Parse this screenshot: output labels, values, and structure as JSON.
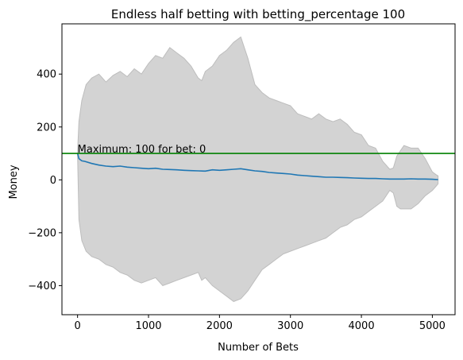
{
  "chart_data": {
    "type": "area",
    "title": "Endless half betting with betting_percentage 100",
    "xlabel": "Number of Bets",
    "ylabel": "Money",
    "xlim": [
      -220,
      5320
    ],
    "ylim": [
      -510,
      590
    ],
    "xticks": [
      0,
      1000,
      2000,
      3000,
      4000,
      5000
    ],
    "xtick_labels": [
      "0",
      "1000",
      "2000",
      "3000",
      "4000",
      "5000"
    ],
    "yticks": [
      -400,
      -200,
      0,
      200,
      400
    ],
    "ytick_labels": [
      "−400",
      "−200",
      "0",
      "200",
      "400"
    ],
    "grid": false,
    "band": {
      "color": "#d3d3d3",
      "edge_color": "#bdbdbd",
      "x": [
        0,
        20,
        60,
        120,
        200,
        300,
        400,
        500,
        600,
        700,
        800,
        900,
        1000,
        1100,
        1200,
        1300,
        1400,
        1500,
        1600,
        1700,
        1750,
        1800,
        1900,
        2000,
        2100,
        2200,
        2300,
        2400,
        2500,
        2600,
        2700,
        2800,
        2900,
        3000,
        3100,
        3200,
        3300,
        3400,
        3500,
        3600,
        3700,
        3800,
        3900,
        4000,
        4100,
        4200,
        4300,
        4400,
        4450,
        4500,
        4550,
        4600,
        4700,
        4800,
        4900,
        5000,
        5050,
        5080
      ],
      "upper": [
        110,
        220,
        300,
        360,
        385,
        400,
        370,
        395,
        410,
        390,
        420,
        400,
        440,
        470,
        460,
        500,
        480,
        460,
        430,
        385,
        375,
        410,
        430,
        470,
        490,
        520,
        540,
        460,
        360,
        330,
        310,
        300,
        290,
        280,
        250,
        240,
        230,
        250,
        230,
        220,
        230,
        210,
        180,
        170,
        130,
        120,
        70,
        40,
        45,
        90,
        110,
        130,
        120,
        120,
        80,
        30,
        20,
        15
      ],
      "lower": [
        90,
        -150,
        -230,
        -270,
        -290,
        -300,
        -320,
        -330,
        -350,
        -360,
        -380,
        -390,
        -380,
        -370,
        -400,
        -390,
        -380,
        -370,
        -360,
        -350,
        -380,
        -370,
        -400,
        -420,
        -440,
        -460,
        -450,
        -420,
        -380,
        -340,
        -320,
        -300,
        -280,
        -270,
        -260,
        -250,
        -240,
        -230,
        -220,
        -200,
        -180,
        -170,
        -150,
        -140,
        -120,
        -100,
        -80,
        -40,
        -50,
        -100,
        -110,
        -110,
        -110,
        -90,
        -60,
        -40,
        -25,
        -15
      ]
    },
    "series": [
      {
        "color": "#1f77b4",
        "x": [
          0,
          20,
          60,
          100,
          200,
          300,
          400,
          500,
          600,
          700,
          800,
          900,
          1000,
          1100,
          1200,
          1300,
          1400,
          1500,
          1600,
          1700,
          1800,
          1900,
          2000,
          2100,
          2200,
          2300,
          2400,
          2500,
          2600,
          2700,
          2800,
          2900,
          3000,
          3100,
          3200,
          3300,
          3400,
          3500,
          3600,
          3700,
          3800,
          3900,
          4000,
          4100,
          4200,
          4300,
          4400,
          4500,
          4600,
          4700,
          4800,
          4900,
          5000,
          5080
        ],
        "y": [
          100,
          80,
          72,
          70,
          62,
          56,
          52,
          50,
          52,
          48,
          46,
          44,
          42,
          44,
          40,
          39,
          38,
          36,
          35,
          34,
          33,
          38,
          36,
          38,
          40,
          42,
          38,
          34,
          32,
          28,
          26,
          24,
          22,
          18,
          16,
          14,
          12,
          10,
          10,
          9,
          8,
          7,
          6,
          5,
          5,
          4,
          3,
          3,
          3,
          4,
          3,
          3,
          2,
          1
        ]
      }
    ],
    "hline": {
      "y": 100,
      "color": "#008000"
    },
    "annotation": {
      "text": "Maximum: 100 for bet: 0",
      "x": 0,
      "y": 100
    }
  }
}
